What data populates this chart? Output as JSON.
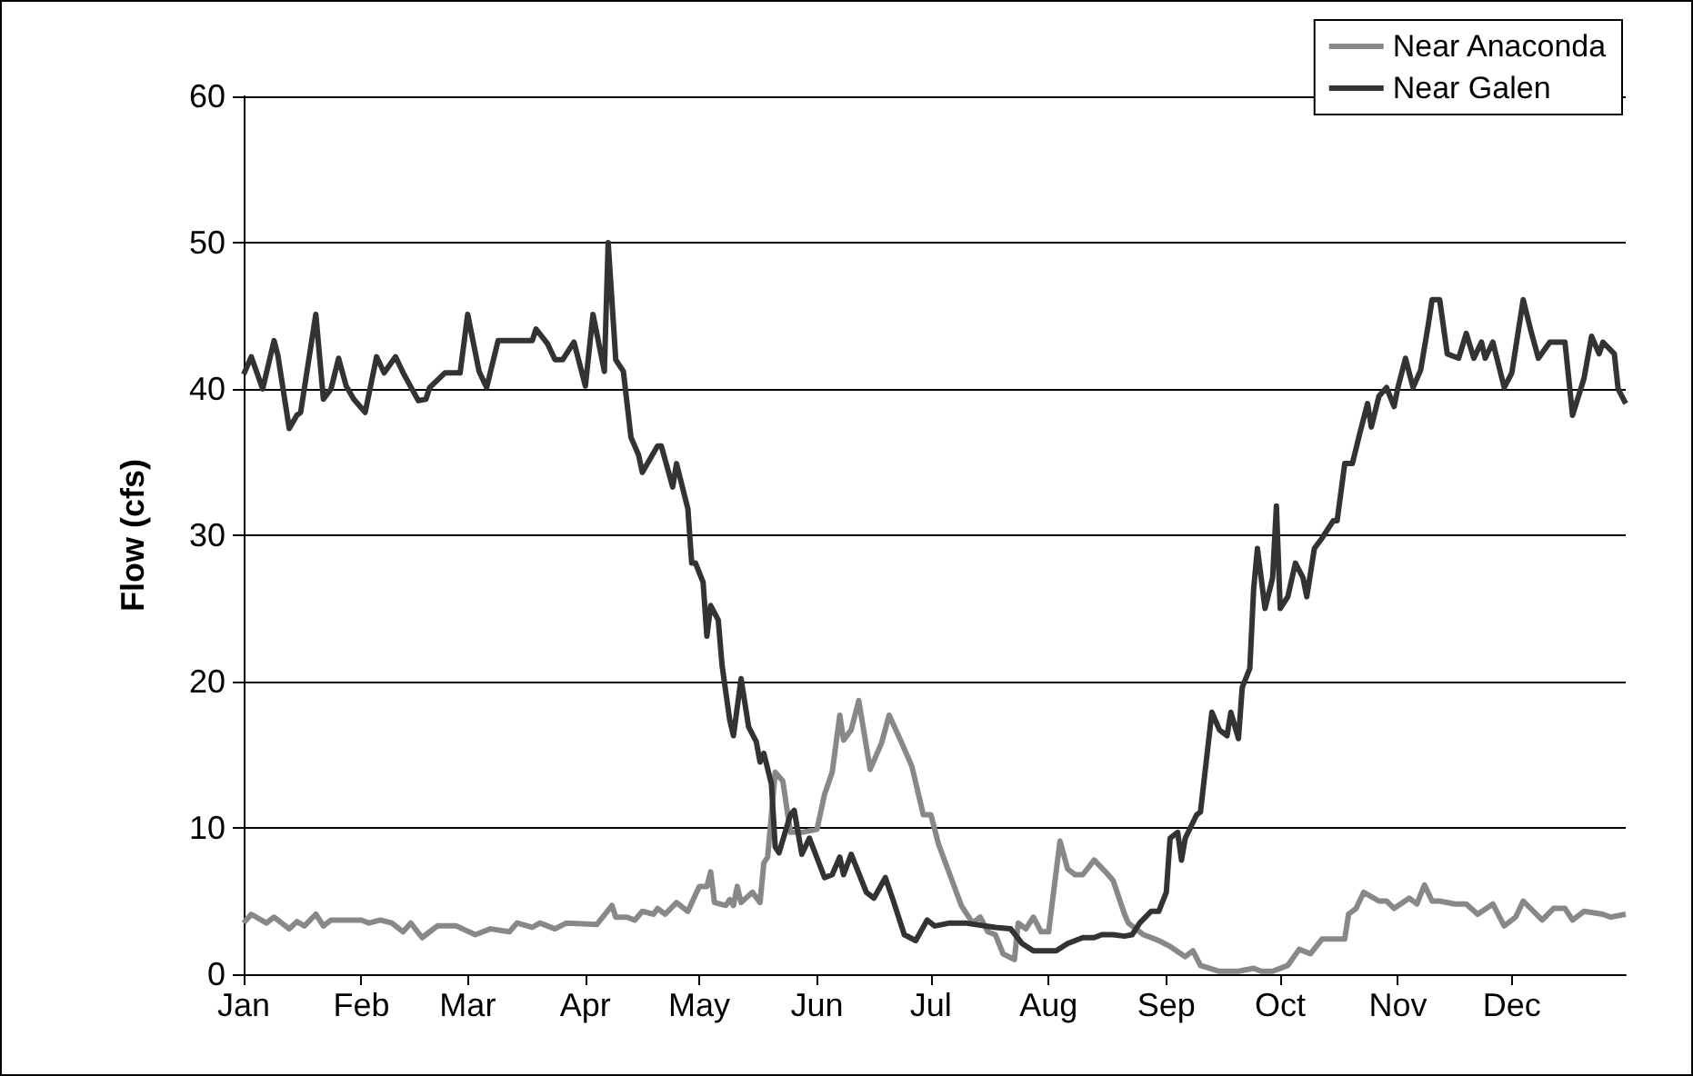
{
  "chart_data": {
    "type": "line",
    "ylabel": "Flow (cfs)",
    "xlim": [
      "--01-01",
      "--12-31"
    ],
    "ylim": [
      0,
      60
    ],
    "xticks": [
      {
        "value": "--01-01",
        "label": "Jan"
      },
      {
        "value": "--02-01",
        "label": "Feb"
      },
      {
        "value": "--03-01",
        "label": "Mar"
      },
      {
        "value": "--04-01",
        "label": "Apr"
      },
      {
        "value": "--05-01",
        "label": "May"
      },
      {
        "value": "--06-01",
        "label": "Jun"
      },
      {
        "value": "--07-01",
        "label": "Jul"
      },
      {
        "value": "--08-01",
        "label": "Aug"
      },
      {
        "value": "--09-01",
        "label": "Sep"
      },
      {
        "value": "--10-01",
        "label": "Oct"
      },
      {
        "value": "--11-01",
        "label": "Nov"
      },
      {
        "value": "--12-01",
        "label": "Dec"
      }
    ],
    "yticks": [
      0,
      10,
      20,
      30,
      40,
      50,
      60
    ],
    "grid": "y",
    "legend": "top right",
    "marker": "none",
    "line_style": "solid",
    "series": [
      {
        "name": "Near Anaconda",
        "color": "#888888",
        "x": [
          "--01-01",
          "--01-03",
          "--01-07",
          "--01-09",
          "--01-13",
          "--01-15",
          "--01-17",
          "--01-20",
          "--01-22",
          "--01-24",
          "--02-01",
          "--02-03",
          "--02-06",
          "--02-09",
          "--02-12",
          "--02-14",
          "--02-17",
          "--02-21",
          "--02-26",
          "--03-03",
          "--03-07",
          "--03-12",
          "--03-14",
          "--03-18",
          "--03-20",
          "--03-24",
          "--03-27",
          "--04-04",
          "--04-08",
          "--04-09",
          "--04-12",
          "--04-14",
          "--04-16",
          "--04-19",
          "--04-20",
          "--04-22",
          "--04-25",
          "--04-28",
          "--05-01",
          "--05-03",
          "--05-04",
          "--05-05",
          "--05-08",
          "--05-09",
          "--05-10",
          "--05-11",
          "--05-12",
          "--05-15",
          "--05-17",
          "--05-18",
          "--05-19",
          "--05-21",
          "--05-23",
          "--05-25",
          "--05-28",
          "--06-01",
          "--06-03",
          "--06-05",
          "--06-07",
          "--06-08",
          "--06-10",
          "--06-12",
          "--06-15",
          "--06-18",
          "--06-20",
          "--06-23",
          "--06-26",
          "--06-29",
          "--07-01",
          "--07-03",
          "--07-06",
          "--07-09",
          "--07-12",
          "--07-14",
          "--07-16",
          "--07-18",
          "--07-20",
          "--07-23",
          "--07-24",
          "--07-26",
          "--07-28",
          "--07-30",
          "--08-01",
          "--08-04",
          "--08-06",
          "--08-08",
          "--08-10",
          "--08-13",
          "--08-16",
          "--08-18",
          "--08-21",
          "--08-22",
          "--08-26",
          "--08-30",
          "--09-02",
          "--09-06",
          "--09-08",
          "--09-10",
          "--09-15",
          "--09-20",
          "--09-24",
          "--09-26",
          "--09-29",
          "--10-03",
          "--10-06",
          "--10-09",
          "--10-12",
          "--10-18",
          "--10-19",
          "--10-21",
          "--10-23",
          "--10-27",
          "--10-29",
          "--10-31",
          "--11-04",
          "--11-06",
          "--11-08",
          "--11-10",
          "--11-12",
          "--11-16",
          "--11-19",
          "--11-22",
          "--11-26",
          "--11-29",
          "--12-02",
          "--12-04",
          "--12-09",
          "--12-12",
          "--12-15",
          "--12-17",
          "--12-20",
          "--12-25",
          "--12-27",
          "--12-31"
        ],
        "values": [
          3.5,
          4.1,
          3.5,
          3.9,
          3.1,
          3.6,
          3.3,
          4.1,
          3.3,
          3.7,
          3.7,
          3.5,
          3.7,
          3.5,
          2.9,
          3.5,
          2.5,
          3.3,
          3.3,
          2.7,
          3.1,
          2.9,
          3.5,
          3.2,
          3.5,
          3.1,
          3.5,
          3.4,
          4.7,
          3.9,
          3.9,
          3.7,
          4.3,
          4.1,
          4.5,
          4.1,
          4.9,
          4.3,
          6.0,
          6.0,
          7.0,
          4.9,
          4.7,
          5.1,
          4.7,
          6.0,
          4.9,
          5.6,
          4.9,
          7.6,
          8.0,
          13.8,
          13.2,
          9.7,
          9.7,
          9.9,
          12.3,
          13.8,
          17.7,
          16.0,
          16.7,
          18.7,
          14.0,
          15.8,
          17.7,
          16.0,
          14.2,
          10.9,
          10.9,
          8.9,
          6.8,
          4.7,
          3.5,
          3.9,
          2.9,
          2.7,
          1.4,
          1.0,
          3.5,
          3.1,
          3.9,
          2.9,
          2.9,
          9.1,
          7.2,
          6.8,
          6.8,
          7.8,
          7.0,
          6.4,
          4.1,
          3.5,
          2.7,
          2.3,
          1.9,
          1.2,
          1.6,
          0.6,
          0.2,
          0.2,
          0.4,
          0.2,
          0.2,
          0.6,
          1.7,
          1.4,
          2.4,
          2.4,
          4.1,
          4.5,
          5.6,
          5.0,
          5.0,
          4.5,
          5.2,
          4.8,
          6.1,
          5.0,
          5.0,
          4.8,
          4.8,
          4.1,
          4.8,
          3.3,
          3.9,
          5.0,
          3.7,
          4.5,
          4.5,
          3.7,
          4.3,
          4.1,
          3.9,
          4.1
        ]
      },
      {
        "name": "Near Galen",
        "color": "#333333",
        "x": [
          "--01-01",
          "--01-03",
          "--01-06",
          "--01-09",
          "--01-10",
          "--01-13",
          "--01-15",
          "--01-16",
          "--01-20",
          "--01-22",
          "--01-24",
          "--01-26",
          "--01-28",
          "--01-30",
          "--02-02",
          "--02-05",
          "--02-07",
          "--02-10",
          "--02-12",
          "--02-16",
          "--02-18",
          "--02-19",
          "--02-23",
          "--02-27",
          "--03-01",
          "--03-04",
          "--03-06",
          "--03-09",
          "--03-18",
          "--03-19",
          "--03-22",
          "--03-24",
          "--03-26",
          "--03-29",
          "--04-01",
          "--04-03",
          "--04-06",
          "--04-07",
          "--04-09",
          "--04-11",
          "--04-13",
          "--04-15",
          "--04-16",
          "--04-20",
          "--04-21",
          "--04-24",
          "--04-25",
          "--04-28",
          "--04-29",
          "--04-30",
          "--05-02",
          "--05-03",
          "--05-04",
          "--05-06",
          "--05-07",
          "--05-09",
          "--05-10",
          "--05-12",
          "--05-14",
          "--05-16",
          "--05-17",
          "--05-18",
          "--05-20",
          "--05-21",
          "--05-22",
          "--05-25",
          "--05-26",
          "--05-28",
          "--05-30",
          "--06-03",
          "--06-05",
          "--06-07",
          "--06-08",
          "--06-10",
          "--06-14",
          "--06-16",
          "--06-19",
          "--06-21",
          "--06-24",
          "--06-27",
          "--06-30",
          "--07-02",
          "--07-06",
          "--07-10",
          "--07-18",
          "--07-22",
          "--07-25",
          "--07-28",
          "--08-03",
          "--08-06",
          "--08-10",
          "--08-13",
          "--08-15",
          "--08-18",
          "--08-21",
          "--08-23",
          "--08-25",
          "--08-28",
          "--08-30",
          "--09-01",
          "--09-02",
          "--09-04",
          "--09-05",
          "--09-06",
          "--09-09",
          "--09-10",
          "--09-13",
          "--09-15",
          "--09-17",
          "--09-18",
          "--09-20",
          "--09-21",
          "--09-23",
          "--09-24",
          "--09-25",
          "--09-27",
          "--09-29",
          "--09-30",
          "--10-01",
          "--10-03",
          "--10-05",
          "--10-07",
          "--10-08",
          "--10-10",
          "--10-12",
          "--10-15",
          "--10-16",
          "--10-18",
          "--10-20",
          "--10-22",
          "--10-24",
          "--10-25",
          "--10-27",
          "--10-29",
          "--10-31",
          "--11-01",
          "--11-03",
          "--11-05",
          "--11-07",
          "--11-09",
          "--11-10",
          "--11-12",
          "--11-14",
          "--11-17",
          "--11-19",
          "--11-21",
          "--11-23",
          "--11-24",
          "--11-26",
          "--11-29",
          "--12-01",
          "--12-04",
          "--12-06",
          "--12-08",
          "--12-11",
          "--12-15",
          "--12-17",
          "--12-20",
          "--12-22",
          "--12-24",
          "--12-25",
          "--12-28",
          "--12-29",
          "--12-31"
        ],
        "values": [
          41,
          42.2,
          40,
          43.3,
          42.3,
          37.3,
          38.2,
          38.4,
          45.1,
          39.3,
          40,
          42.1,
          40.2,
          39.3,
          38.4,
          42.2,
          41.1,
          42.2,
          41.1,
          39.2,
          39.3,
          40.1,
          41.1,
          41.1,
          45.1,
          41.2,
          40.1,
          43.3,
          43.3,
          44.1,
          43.1,
          42,
          42,
          43.2,
          40.2,
          45.1,
          41.2,
          50,
          42,
          41.2,
          36.7,
          35.5,
          34.3,
          36.1,
          36.1,
          33.3,
          34.9,
          31.8,
          28.1,
          28.1,
          26.8,
          23.1,
          25.2,
          24.2,
          21.1,
          17.4,
          16.3,
          20.2,
          16.9,
          15.9,
          14.5,
          15.1,
          13,
          8.7,
          8.3,
          10.9,
          11.2,
          8.2,
          9.3,
          6.6,
          6.8,
          8,
          6.8,
          8.2,
          5.6,
          5.2,
          6.6,
          5.1,
          2.7,
          2.3,
          3.7,
          3.3,
          3.5,
          3.5,
          3.2,
          3.1,
          2.1,
          1.6,
          1.6,
          2.1,
          2.5,
          2.5,
          2.7,
          2.7,
          2.6,
          2.7,
          3.5,
          4.3,
          4.3,
          5.6,
          9.3,
          9.7,
          7.8,
          9.3,
          10.9,
          11.1,
          17.9,
          16.7,
          16.3,
          17.9,
          16.1,
          19.6,
          20.9,
          26.3,
          29.1,
          25,
          27.1,
          32,
          25,
          25.8,
          28.1,
          27.1,
          25.8,
          29.1,
          29.8,
          31,
          31,
          34.9,
          34.9,
          37,
          39,
          37.4,
          39.5,
          40.1,
          38.8,
          40.1,
          42.1,
          40.1,
          41.3,
          44.4,
          46.1,
          46.1,
          42.4,
          42.1,
          43.8,
          42.1,
          43.2,
          42.1,
          43.2,
          40.1,
          41.1,
          46.1,
          44,
          42.1,
          43.2,
          43.2,
          38.2,
          40.7,
          43.6,
          42.4,
          43.2,
          42.4,
          40,
          39
        ]
      }
    ]
  }
}
